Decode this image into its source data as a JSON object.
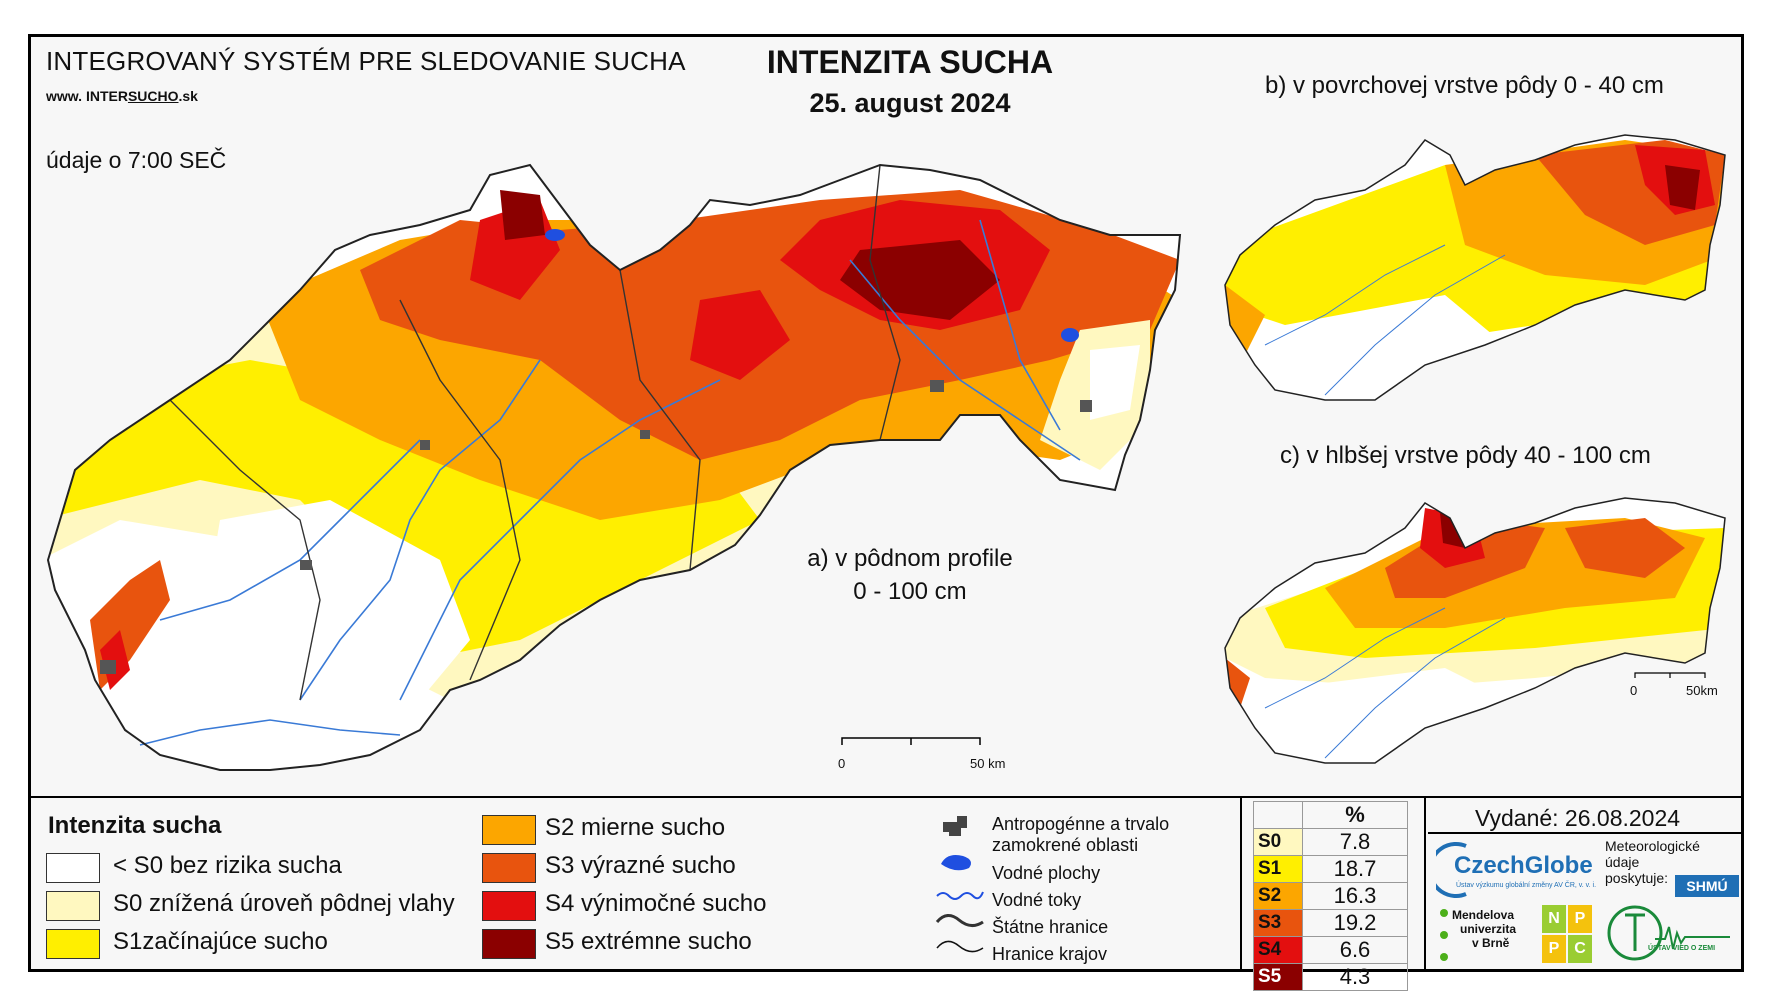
{
  "header": {
    "system_name": "INTEGROVANÝ SYSTÉM PRE SLEDOVANIE SUCHA",
    "website": {
      "prefix": "www. ",
      "brand_a": "INTER",
      "brand_b": "SUCHO",
      "suffix": ".sk"
    },
    "observation_time": "údaje o 7:00 SEČ",
    "title": "INTENZITA SUCHA",
    "date": "25. august 2024"
  },
  "maps": {
    "main": {
      "label_line1": "a) v pôdnom profile",
      "label_line2": "0 - 100 cm",
      "scale": {
        "start": "0",
        "end": "50 km"
      }
    },
    "topsoil": {
      "label": "b) v povrchovej vrstve pôdy 0 - 40 cm"
    },
    "subsoil": {
      "label": "c) v hlbšej vrstve pôdy 40 - 100 cm",
      "scale": {
        "start": "0",
        "end": "50km"
      }
    }
  },
  "legend": {
    "title": "Intenzita sucha",
    "classes": [
      {
        "label": "< S0 bez rizika sucha",
        "color": "#ffffff"
      },
      {
        "label": "S0 znížená úroveň pôdnej vlahy",
        "color": "#fff8c0"
      },
      {
        "label": "S1začínajúce sucho",
        "color": "#ffef00"
      },
      {
        "label": "S2 mierne sucho",
        "color": "#fca600"
      },
      {
        "label": "S3 výrazné sucho",
        "color": "#e8540e"
      },
      {
        "label": "S4 výnimočné sucho",
        "color": "#e30f0f"
      },
      {
        "label": "S5 extrémne sucho",
        "color": "#8b0000"
      }
    ],
    "symbols": [
      {
        "label": "Antropogénne a trvalo zamokrené oblasti",
        "icon": "urban-area-icon"
      },
      {
        "label": "Vodné plochy",
        "icon": "water-body-icon"
      },
      {
        "label": "Vodné toky",
        "icon": "river-icon"
      },
      {
        "label": "Štátne hranice",
        "icon": "state-border-icon"
      },
      {
        "label": "Hranice krajov",
        "icon": "region-border-icon"
      }
    ]
  },
  "percent_table": {
    "header": "%",
    "rows": [
      {
        "cls": "S0",
        "value": "7.8",
        "color": "#fff8c0"
      },
      {
        "cls": "S1",
        "value": "18.7",
        "color": "#ffef00"
      },
      {
        "cls": "S2",
        "value": "16.3",
        "color": "#fca600"
      },
      {
        "cls": "S3",
        "value": "19.2",
        "color": "#e8540e"
      },
      {
        "cls": "S4",
        "value": "6.6",
        "color": "#e30f0f"
      },
      {
        "cls": "S5",
        "value": "4.3",
        "color": "#8b0000"
      }
    ]
  },
  "footer": {
    "issued": "Vydané: 26.08.2024",
    "czechglobe": "CzechGlobe",
    "czechglobe_sub": "Ústav výzkumu globální změny AV ČR, v. v. i.",
    "meteo_line1": "Meteorologické",
    "meteo_line2": "údaje",
    "meteo_line3": "poskytuje:",
    "shmu": "SHMÚ",
    "mendel_line1": "Mendelova",
    "mendel_line2": "univerzita",
    "mendel_line3": "v Brně",
    "nppc": [
      "N",
      "P",
      "P",
      "C"
    ],
    "uvz": "ÚSTAV VIED O ZEMI"
  }
}
